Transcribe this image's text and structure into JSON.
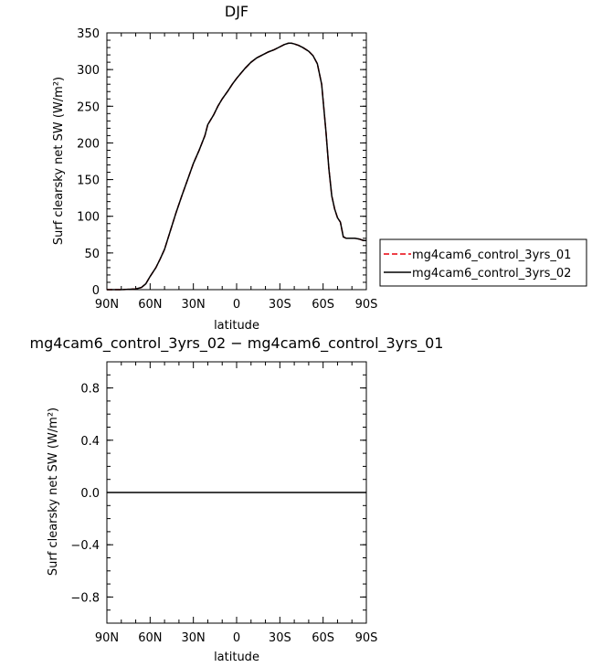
{
  "chart_data": [
    {
      "type": "line",
      "title": "DJF",
      "xlabel": "latitude",
      "ylabel": "Surf clearsky net SW (W/m²)",
      "xlim": [
        90,
        -90
      ],
      "ylim": [
        0,
        350
      ],
      "x_tick_values": [
        90,
        60,
        30,
        0,
        -30,
        -60,
        -90
      ],
      "x_tick_labels": [
        "90N",
        "60N",
        "30N",
        "0",
        "30S",
        "60S",
        "90S"
      ],
      "y_tick_values": [
        0,
        50,
        100,
        150,
        200,
        250,
        300,
        350
      ],
      "y_tick_labels": [
        "0",
        "50",
        "100",
        "150",
        "200",
        "250",
        "300",
        "350"
      ],
      "grid": false,
      "legend_position": "right",
      "x": [
        90,
        80,
        70,
        66,
        63,
        60,
        56,
        53,
        50,
        46,
        42,
        38,
        34,
        30,
        26,
        22,
        20,
        16,
        13,
        10,
        6,
        3,
        0,
        -3,
        -6,
        -10,
        -14,
        -18,
        -22,
        -26,
        -30,
        -33,
        -36,
        -38,
        -40,
        -43,
        -46,
        -50,
        -53,
        -56,
        -59,
        -62,
        -64,
        -66,
        -68,
        -70,
        -72,
        -74,
        -76,
        -78,
        -80,
        -82,
        -85,
        -88,
        -90
      ],
      "series": [
        {
          "name": "mg4cam6_control_3yrs_01",
          "color": "#e8000b",
          "dash": "dashed",
          "values": [
            0,
            0,
            1,
            3,
            8,
            18,
            30,
            42,
            55,
            80,
            105,
            128,
            150,
            172,
            190,
            210,
            225,
            238,
            250,
            260,
            271,
            280,
            288,
            295,
            302,
            310,
            316,
            320,
            324,
            327,
            331,
            334,
            336,
            336,
            335,
            333,
            330,
            325,
            319,
            308,
            280,
            215,
            165,
            128,
            110,
            98,
            92,
            72,
            70,
            70,
            70,
            70,
            69,
            67,
            67
          ]
        },
        {
          "name": "mg4cam6_control_3yrs_02",
          "color": "#000000",
          "dash": "solid",
          "values": [
            0,
            0,
            1,
            3,
            8,
            18,
            30,
            42,
            55,
            80,
            105,
            128,
            150,
            172,
            190,
            210,
            225,
            238,
            250,
            260,
            271,
            280,
            288,
            295,
            302,
            310,
            316,
            320,
            324,
            327,
            331,
            334,
            336,
            336,
            335,
            333,
            330,
            325,
            319,
            308,
            280,
            215,
            165,
            128,
            110,
            98,
            92,
            72,
            70,
            70,
            70,
            70,
            69,
            67,
            67
          ]
        }
      ]
    },
    {
      "type": "line",
      "title": "mg4cam6_control_3yrs_02 − mg4cam6_control_3yrs_01",
      "xlabel": "latitude",
      "ylabel": "Surf clearsky net SW (W/m²)",
      "xlim": [
        90,
        -90
      ],
      "ylim": [
        -1,
        1
      ],
      "x_tick_values": [
        90,
        60,
        30,
        0,
        -30,
        -60,
        -90
      ],
      "x_tick_labels": [
        "90N",
        "60N",
        "30N",
        "0",
        "30S",
        "60S",
        "90S"
      ],
      "y_tick_values": [
        -0.8,
        -0.4,
        0.0,
        0.4,
        0.8
      ],
      "y_tick_labels": [
        "−0.8",
        "−0.4",
        "0.0",
        "0.4",
        "0.8"
      ],
      "grid": false,
      "x": [
        90,
        -90
      ],
      "series": [
        {
          "color": "#000000",
          "dash": "solid",
          "values": [
            0,
            0
          ]
        }
      ]
    }
  ]
}
